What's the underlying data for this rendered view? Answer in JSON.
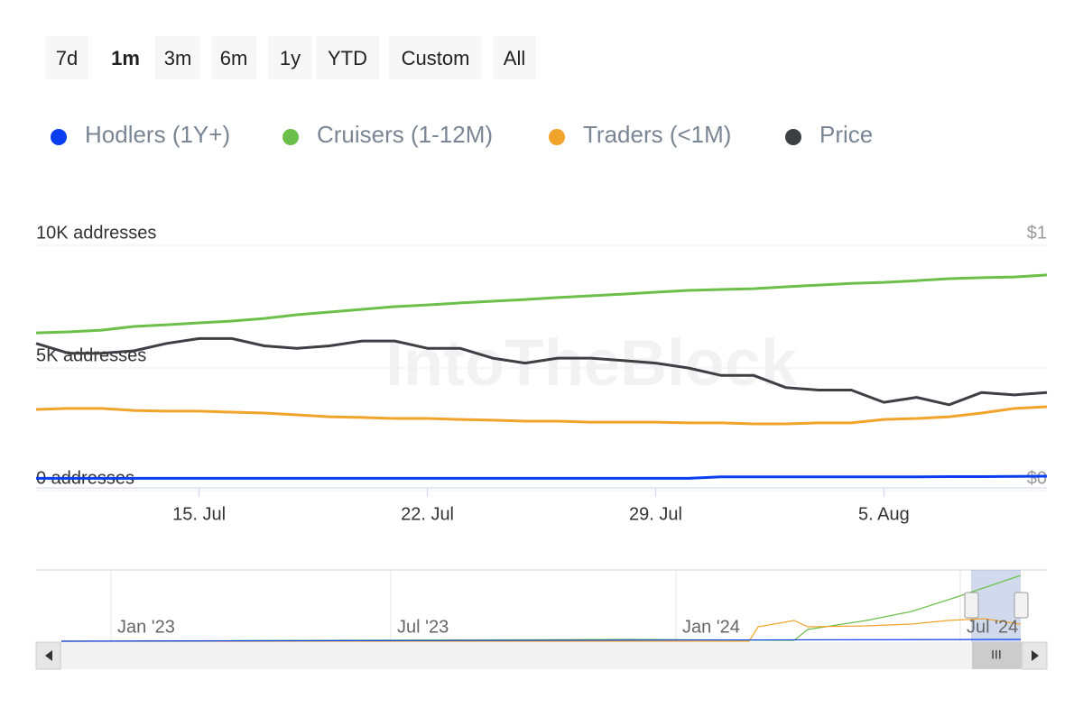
{
  "range_buttons": {
    "labels": [
      "7d",
      "1m",
      "3m",
      "6m",
      "1y",
      "YTD",
      "Custom",
      "All"
    ],
    "selected": "1m"
  },
  "chart_data": {
    "type": "line",
    "watermark": "IntoTheBlock",
    "categories": [
      null,
      null,
      null,
      null,
      null,
      "15. Jul",
      null,
      null,
      null,
      null,
      null,
      null,
      "22. Jul",
      null,
      null,
      null,
      null,
      null,
      null,
      "29. Jul",
      null,
      null,
      null,
      null,
      null,
      null,
      "5. Aug",
      null,
      null,
      null,
      null,
      null
    ],
    "series": [
      {
        "name": "Hodlers (1Y+)",
        "color": "#0a3df0",
        "values": [
          500,
          500,
          500,
          500,
          500,
          500,
          500,
          500,
          500,
          500,
          500,
          500,
          500,
          500,
          500,
          500,
          500,
          500,
          500,
          500,
          500,
          560,
          560,
          560,
          560,
          560,
          560,
          560,
          570,
          570,
          580,
          590
        ]
      },
      {
        "name": "Cruisers (1-12M)",
        "color": "#6cc04a",
        "values": [
          6430,
          6470,
          6540,
          6690,
          6760,
          6840,
          6910,
          7020,
          7170,
          7280,
          7390,
          7500,
          7570,
          7650,
          7720,
          7790,
          7870,
          7940,
          8010,
          8090,
          8160,
          8200,
          8230,
          8310,
          8380,
          8450,
          8490,
          8560,
          8640,
          8680,
          8710,
          8790
        ]
      },
      {
        "name": "Traders (<1M)",
        "color": "#f2a32a",
        "values": [
          3310,
          3350,
          3350,
          3270,
          3240,
          3240,
          3200,
          3160,
          3090,
          3010,
          2980,
          2940,
          2940,
          2900,
          2870,
          2830,
          2830,
          2790,
          2790,
          2790,
          2760,
          2760,
          2720,
          2720,
          2760,
          2760,
          2900,
          2940,
          3010,
          3160,
          3350,
          3420
        ]
      },
      {
        "name": "Price",
        "color": "#3c3f44",
        "axis": "y2",
        "values": [
          0.6,
          0.56,
          0.56,
          0.57,
          0.6,
          0.62,
          0.62,
          0.59,
          0.58,
          0.59,
          0.61,
          0.61,
          0.58,
          0.58,
          0.54,
          0.52,
          0.54,
          0.54,
          0.53,
          0.52,
          0.5,
          0.47,
          0.47,
          0.42,
          0.41,
          0.41,
          0.36,
          0.38,
          0.35,
          0.4,
          0.39,
          0.4
        ]
      }
    ],
    "ylim": [
      0,
      10000
    ],
    "yticks": [
      {
        "value": 0,
        "label": "0 addresses"
      },
      {
        "value": 5000,
        "label": "5K addresses"
      },
      {
        "value": 10000,
        "label": "10K addresses"
      }
    ],
    "y2lim": [
      0,
      1
    ],
    "y2ticks": [
      {
        "value": 0,
        "label": "$0"
      },
      {
        "value": 1,
        "label": "$1"
      }
    ],
    "grid": true
  },
  "navigator": {
    "labels": [
      "Jan '23",
      "Jul '23",
      "Jan '24",
      "Jul '24"
    ],
    "scrollbar_handle": "III"
  }
}
